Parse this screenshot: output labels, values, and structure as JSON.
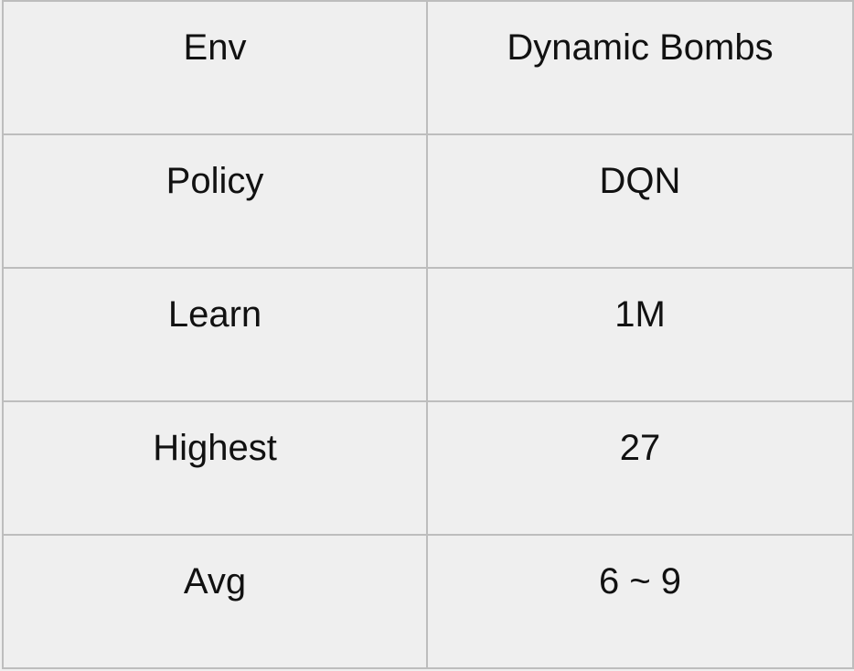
{
  "table": {
    "rows": [
      {
        "label": "Env",
        "value": "Dynamic Bombs"
      },
      {
        "label": "Policy",
        "value": "DQN"
      },
      {
        "label": "Learn",
        "value": "1M"
      },
      {
        "label": "Highest",
        "value": "27"
      },
      {
        "label": "Avg",
        "value": "6 ~ 9"
      }
    ]
  }
}
